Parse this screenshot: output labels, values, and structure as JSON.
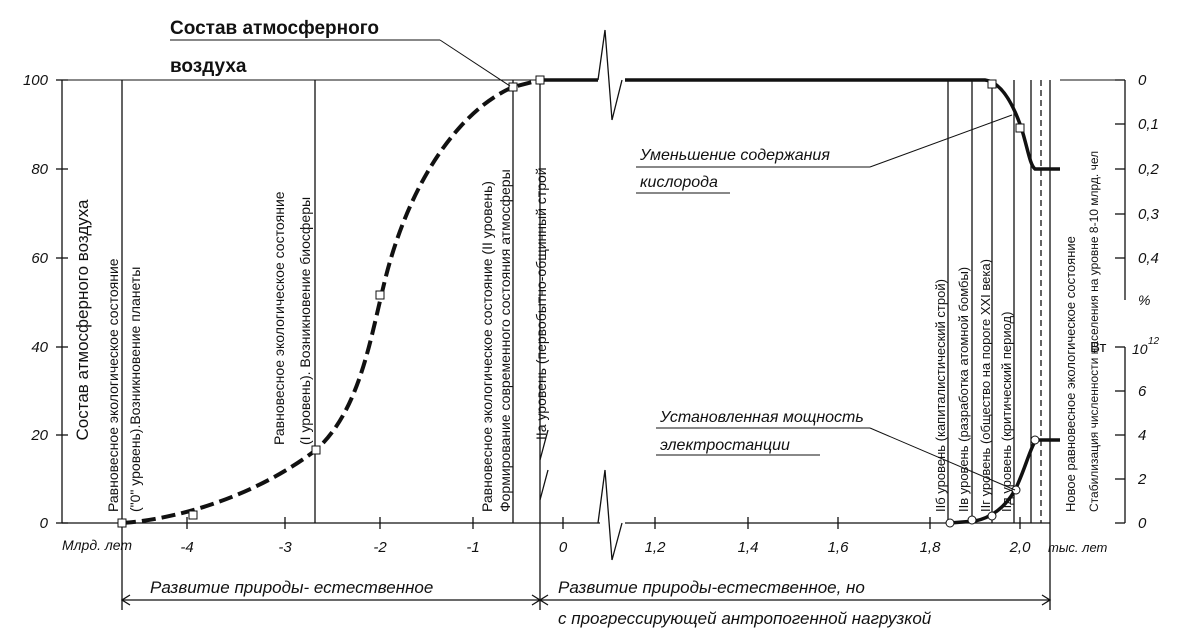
{
  "title": {
    "line1": "Состав атмосферного",
    "line2": "воздуха"
  },
  "left_axis": {
    "title": "Состав атмосферного воздуха",
    "ticks": [
      "100",
      "80",
      "60",
      "40",
      "20",
      "0"
    ]
  },
  "right_axis": {
    "percent_ticks": [
      "0",
      "0,1",
      "0,2",
      "0,3",
      "0,4"
    ],
    "percent_unit": "%",
    "power_unit": "Вт",
    "power_base": "10",
    "power_exp": "12",
    "power_ticks": [
      "6",
      "4",
      "2",
      "0"
    ]
  },
  "x_axis": {
    "unit_left": "Млрд. лет",
    "ticks": [
      "-4",
      "-3",
      "-2",
      "-1",
      "0",
      "1,2",
      "1,4",
      "1,6",
      "1,8",
      "2,0"
    ],
    "unit_right": "тыс. лет"
  },
  "stages": [
    {
      "line1": "Равновесное экологическое состояние",
      "line2": "(\"0\" уровень).Возникновение планеты"
    },
    {
      "line1": "Равновесное  экологическое  состояние",
      "line2": "(I уровень). Возникновение биосферы"
    },
    {
      "line1": "Равновесное экологическое  состояние (II уровень)",
      "line2": "Формирование современного состояния атмосферы"
    },
    {
      "line1": "IIа уровень (первобытно-общинный строй"
    },
    {
      "line1": "IIб уровень (капиталистический  строй)"
    },
    {
      "line1": "IIв уровень (разработка атомной  бомбы)"
    },
    {
      "line1": "IIг уровень (общество на пороге XXI века)"
    },
    {
      "line1": "IIд уровень (критический период)"
    },
    {
      "line1": "Новое  равновесное  экологическое состояние",
      "line2": "Стабилизация численности населения на уровне 8-10 млрд. чел"
    }
  ],
  "annotations": {
    "oxygen": {
      "line1": "Уменьшение содержания",
      "line2": "кислорода"
    },
    "power": {
      "line1": "Установленная мощность",
      "line2": "электростанции"
    }
  },
  "periods": {
    "natural": "Развитие природы- естественное",
    "anthropogenic_line1": "Развитие природы-естественное, но",
    "anthropogenic_line2": "с прогрессирующей антропогенной  нагрузкой"
  }
}
